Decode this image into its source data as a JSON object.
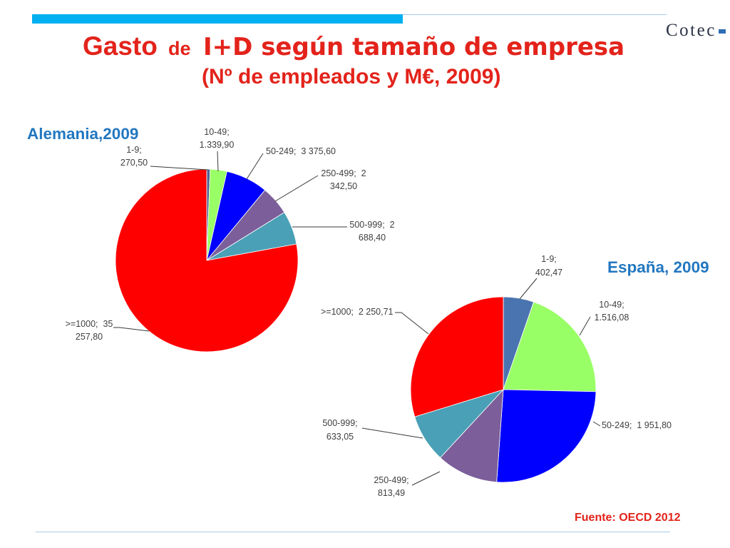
{
  "header": {
    "title_part1": "Gasto",
    "title_part2": "de",
    "title_part3": "I+D según tamaño de empresa",
    "subtitle": "(Nº de empleados y M€, 2009)"
  },
  "logo": {
    "text": "Cotec"
  },
  "source": "Fuente: OECD 2012",
  "colors": {
    "title": "#E3231B",
    "chart_title": "#2277C0",
    "source": "#E3231B",
    "accent_bar": "#00B0F0",
    "rule_line": "#A8CBE9",
    "logo_dash": "#2F6DB5"
  },
  "chart_data": [
    {
      "type": "pie",
      "title": "Alemania,2009",
      "categories": [
        "1-9",
        "10-49",
        "50-249",
        "250-499",
        "500-999",
        ">=1000"
      ],
      "values": [
        270.5,
        1339.9,
        3375.6,
        2342.5,
        2688.4,
        35257.8
      ],
      "data_labels": [
        [
          "1-9;",
          "270,50"
        ],
        [
          "10-49;",
          "1.339,90"
        ],
        [
          "50-249;  3 375,60"
        ],
        [
          "250-499;  2",
          "342,50"
        ],
        [
          "500-999;  2",
          "688,40"
        ],
        [
          ">=1000;  35",
          "257,80"
        ]
      ],
      "colors": [
        "#4A6396",
        "#99FF66",
        "#0000FF",
        "#7B5E9A",
        "#4AA0B6",
        "#FF0000"
      ]
    },
    {
      "type": "pie",
      "title": "España, 2009",
      "categories": [
        "1-9",
        "10-49",
        "50-249",
        "250-499",
        "500-999",
        ">=1000"
      ],
      "values": [
        402.47,
        1516.08,
        1951.8,
        813.49,
        633.05,
        2250.71
      ],
      "data_labels": [
        [
          "1-9;",
          "402,47"
        ],
        [
          "10-49;",
          "1.516,08"
        ],
        [
          "50-249;  1 951,80"
        ],
        [
          "250-499;",
          "813,49"
        ],
        [
          "500-999;",
          "633,05"
        ],
        [
          ">=1000;  2 250,71"
        ]
      ],
      "colors": [
        "#4A74B0",
        "#99FF66",
        "#0000FF",
        "#7B5E9A",
        "#4AA0B6",
        "#FF0000"
      ]
    }
  ]
}
